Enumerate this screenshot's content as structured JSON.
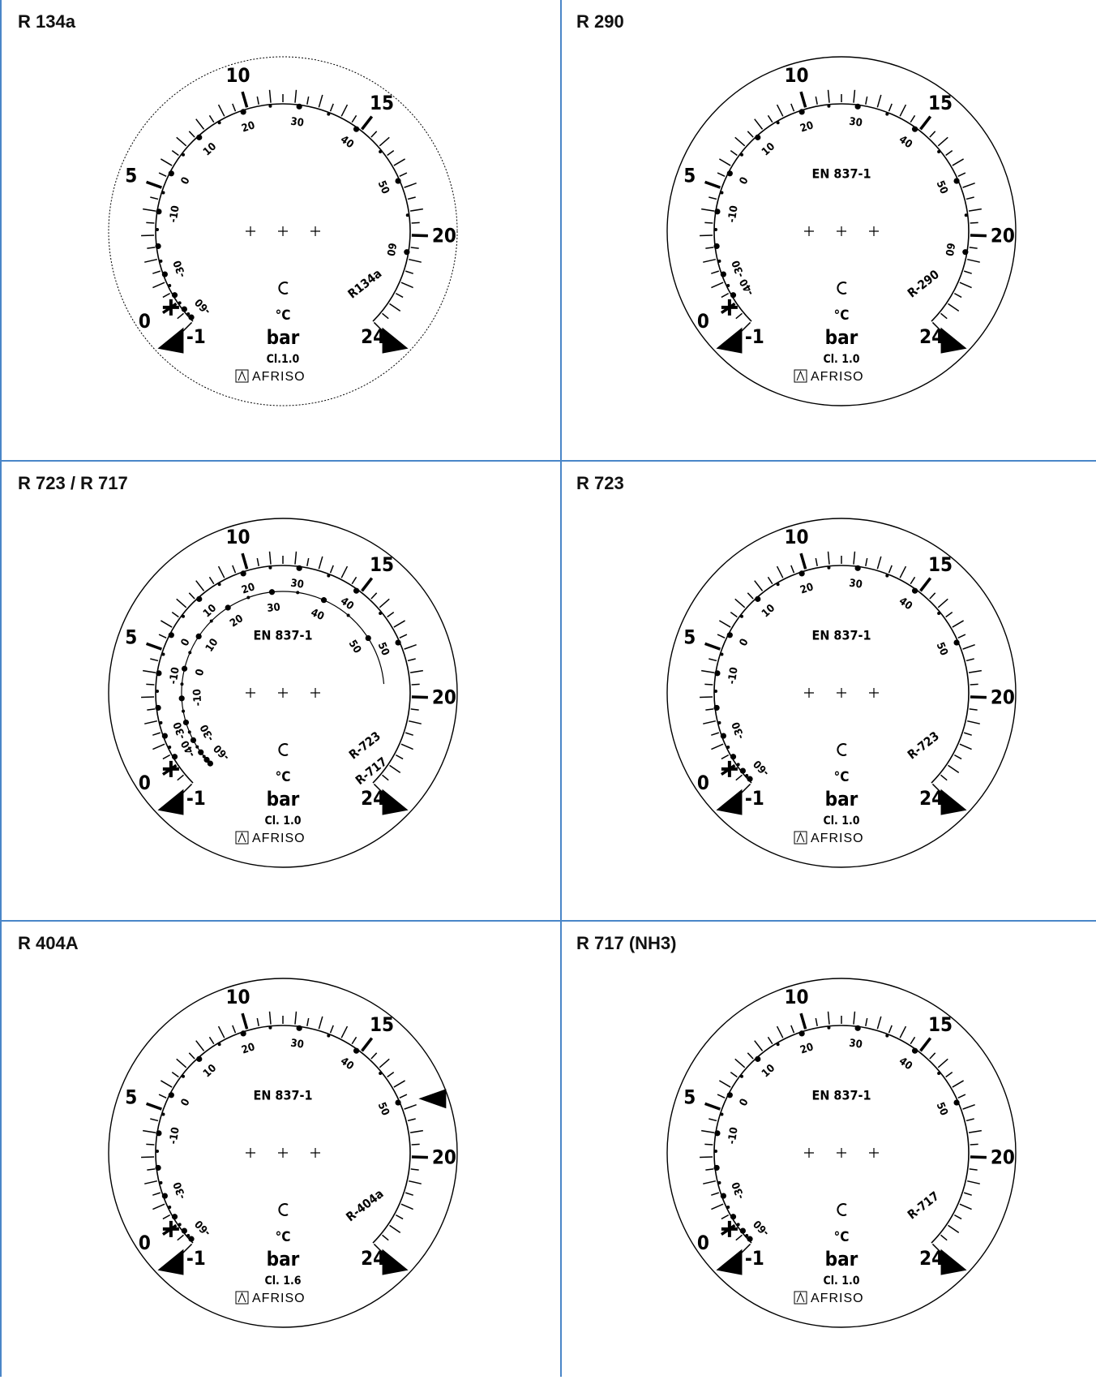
{
  "panels": [
    {
      "title": "R 134a",
      "standard": "",
      "refrigerant": "R134a",
      "temp_unit": "°C",
      "pressure_unit": "bar",
      "accuracy_class": "Cl.1.0",
      "brand": "AFRISO",
      "pressure_labels": [
        "-1",
        "0",
        "5",
        "10",
        "15",
        "20",
        "24"
      ],
      "temp_labels": [
        "-60",
        "-30",
        "-10",
        "0",
        "10",
        "20",
        "30",
        "40",
        "50",
        "60"
      ],
      "dashed_outline": true
    },
    {
      "title": "R 290",
      "standard": "EN 837-1",
      "refrigerant": "R-290",
      "temp_unit": "°C",
      "pressure_unit": "bar",
      "accuracy_class": "Cl. 1.0",
      "brand": "AFRISO",
      "pressure_labels": [
        "-1",
        "0",
        "5",
        "10",
        "15",
        "20",
        "24"
      ],
      "temp_labels": [
        "-40",
        "-30",
        "-10",
        "0",
        "10",
        "20",
        "30",
        "40",
        "50",
        "60"
      ]
    },
    {
      "title": "R 723 / R 717",
      "standard": "EN 837-1",
      "refrigerant": "R-723",
      "refrigerant2": "R-717",
      "temp_unit": "°C",
      "pressure_unit": "bar",
      "accuracy_class": "Cl. 1.0",
      "brand": "AFRISO",
      "pressure_labels": [
        "-1",
        "0",
        "5",
        "10",
        "15",
        "20",
        "24"
      ],
      "temp_labels": [
        "-40",
        "-30",
        "-10",
        "0",
        "10",
        "20",
        "30",
        "40",
        "50"
      ],
      "temp_labels_inner": [
        "-60",
        "-30",
        "-10",
        "0",
        "10",
        "20",
        "30",
        "40",
        "50"
      ]
    },
    {
      "title": "R 723",
      "standard": "EN 837-1",
      "refrigerant": "R-723",
      "temp_unit": "°C",
      "pressure_unit": "bar",
      "accuracy_class": "Cl. 1.0",
      "brand": "AFRISO",
      "pressure_labels": [
        "-1",
        "0",
        "5",
        "10",
        "15",
        "20",
        "24"
      ],
      "temp_labels": [
        "-60",
        "-30",
        "-10",
        "0",
        "10",
        "20",
        "30",
        "40",
        "50"
      ]
    },
    {
      "title": "R 404A",
      "standard": "EN 837-1",
      "refrigerant": "R-404a",
      "temp_unit": "°C",
      "pressure_unit": "bar",
      "accuracy_class": "Cl. 1.6",
      "brand": "AFRISO",
      "pressure_labels": [
        "-1",
        "0",
        "5",
        "10",
        "15",
        "20",
        "24"
      ],
      "temp_labels": [
        "-60",
        "-30",
        "-10",
        "0",
        "10",
        "20",
        "30",
        "40",
        "50"
      ],
      "extra_marker_at_bar": 18
    },
    {
      "title": "R 717 (NH3)",
      "standard": "EN 837-1",
      "refrigerant": "R-717",
      "temp_unit": "°C",
      "pressure_unit": "bar",
      "accuracy_class": "Cl. 1.0",
      "brand": "AFRISO",
      "pressure_labels": [
        "-1",
        "0",
        "5",
        "10",
        "15",
        "20",
        "24"
      ],
      "temp_labels": [
        "-60",
        "-30",
        "-10",
        "0",
        "10",
        "20",
        "30",
        "40",
        "50"
      ]
    }
  ]
}
